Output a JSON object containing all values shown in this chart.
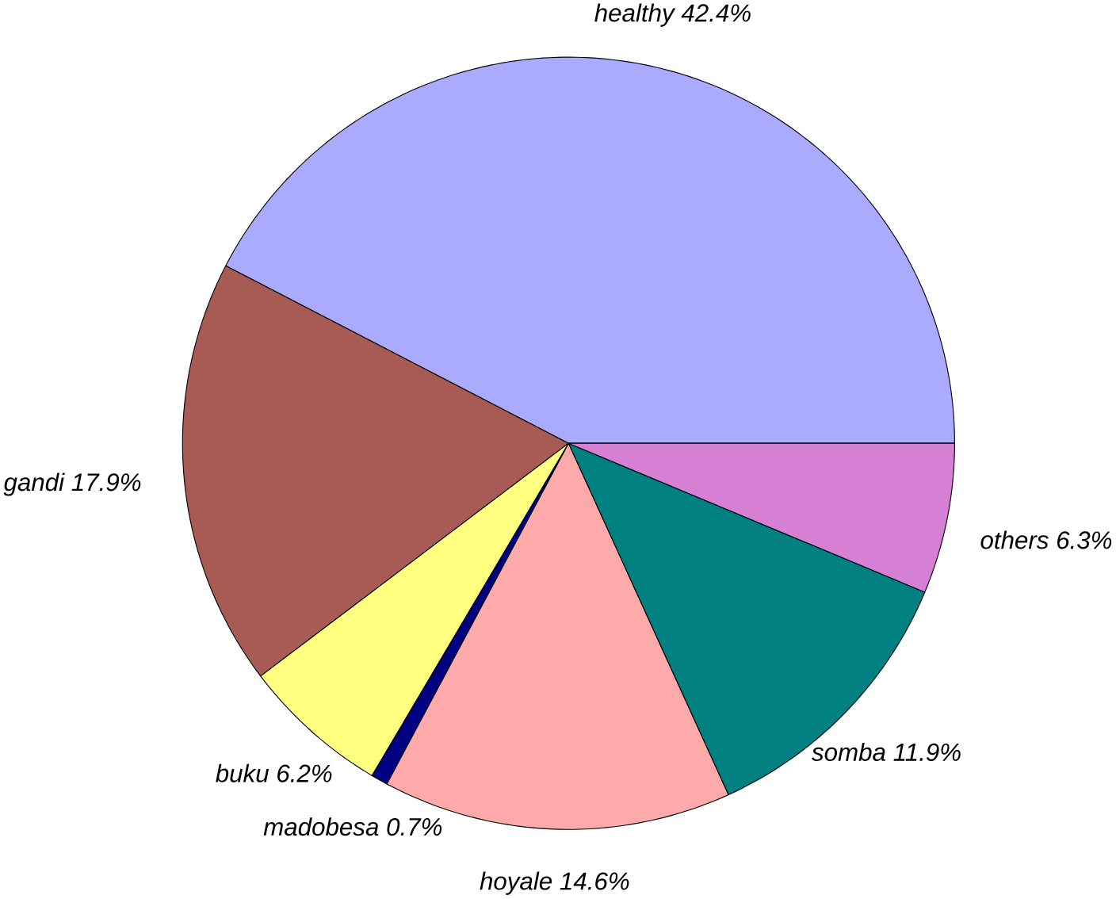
{
  "chart_data": {
    "type": "pie",
    "categories": [
      "healthy",
      "gandi",
      "buku",
      "madobesa",
      "hoyale",
      "somba",
      "others"
    ],
    "values": [
      42.4,
      17.9,
      6.2,
      0.7,
      14.6,
      11.9,
      6.3
    ],
    "value_labels": [
      "42.4%",
      "17.9%",
      "6.2%",
      "0.7%",
      "14.6%",
      "11.9%",
      "6.3%"
    ],
    "colors": [
      "#aaaaff",
      "#a85a55",
      "#ffff80",
      "#000080",
      "#ffaaaa",
      "#008080",
      "#d580d5"
    ]
  }
}
